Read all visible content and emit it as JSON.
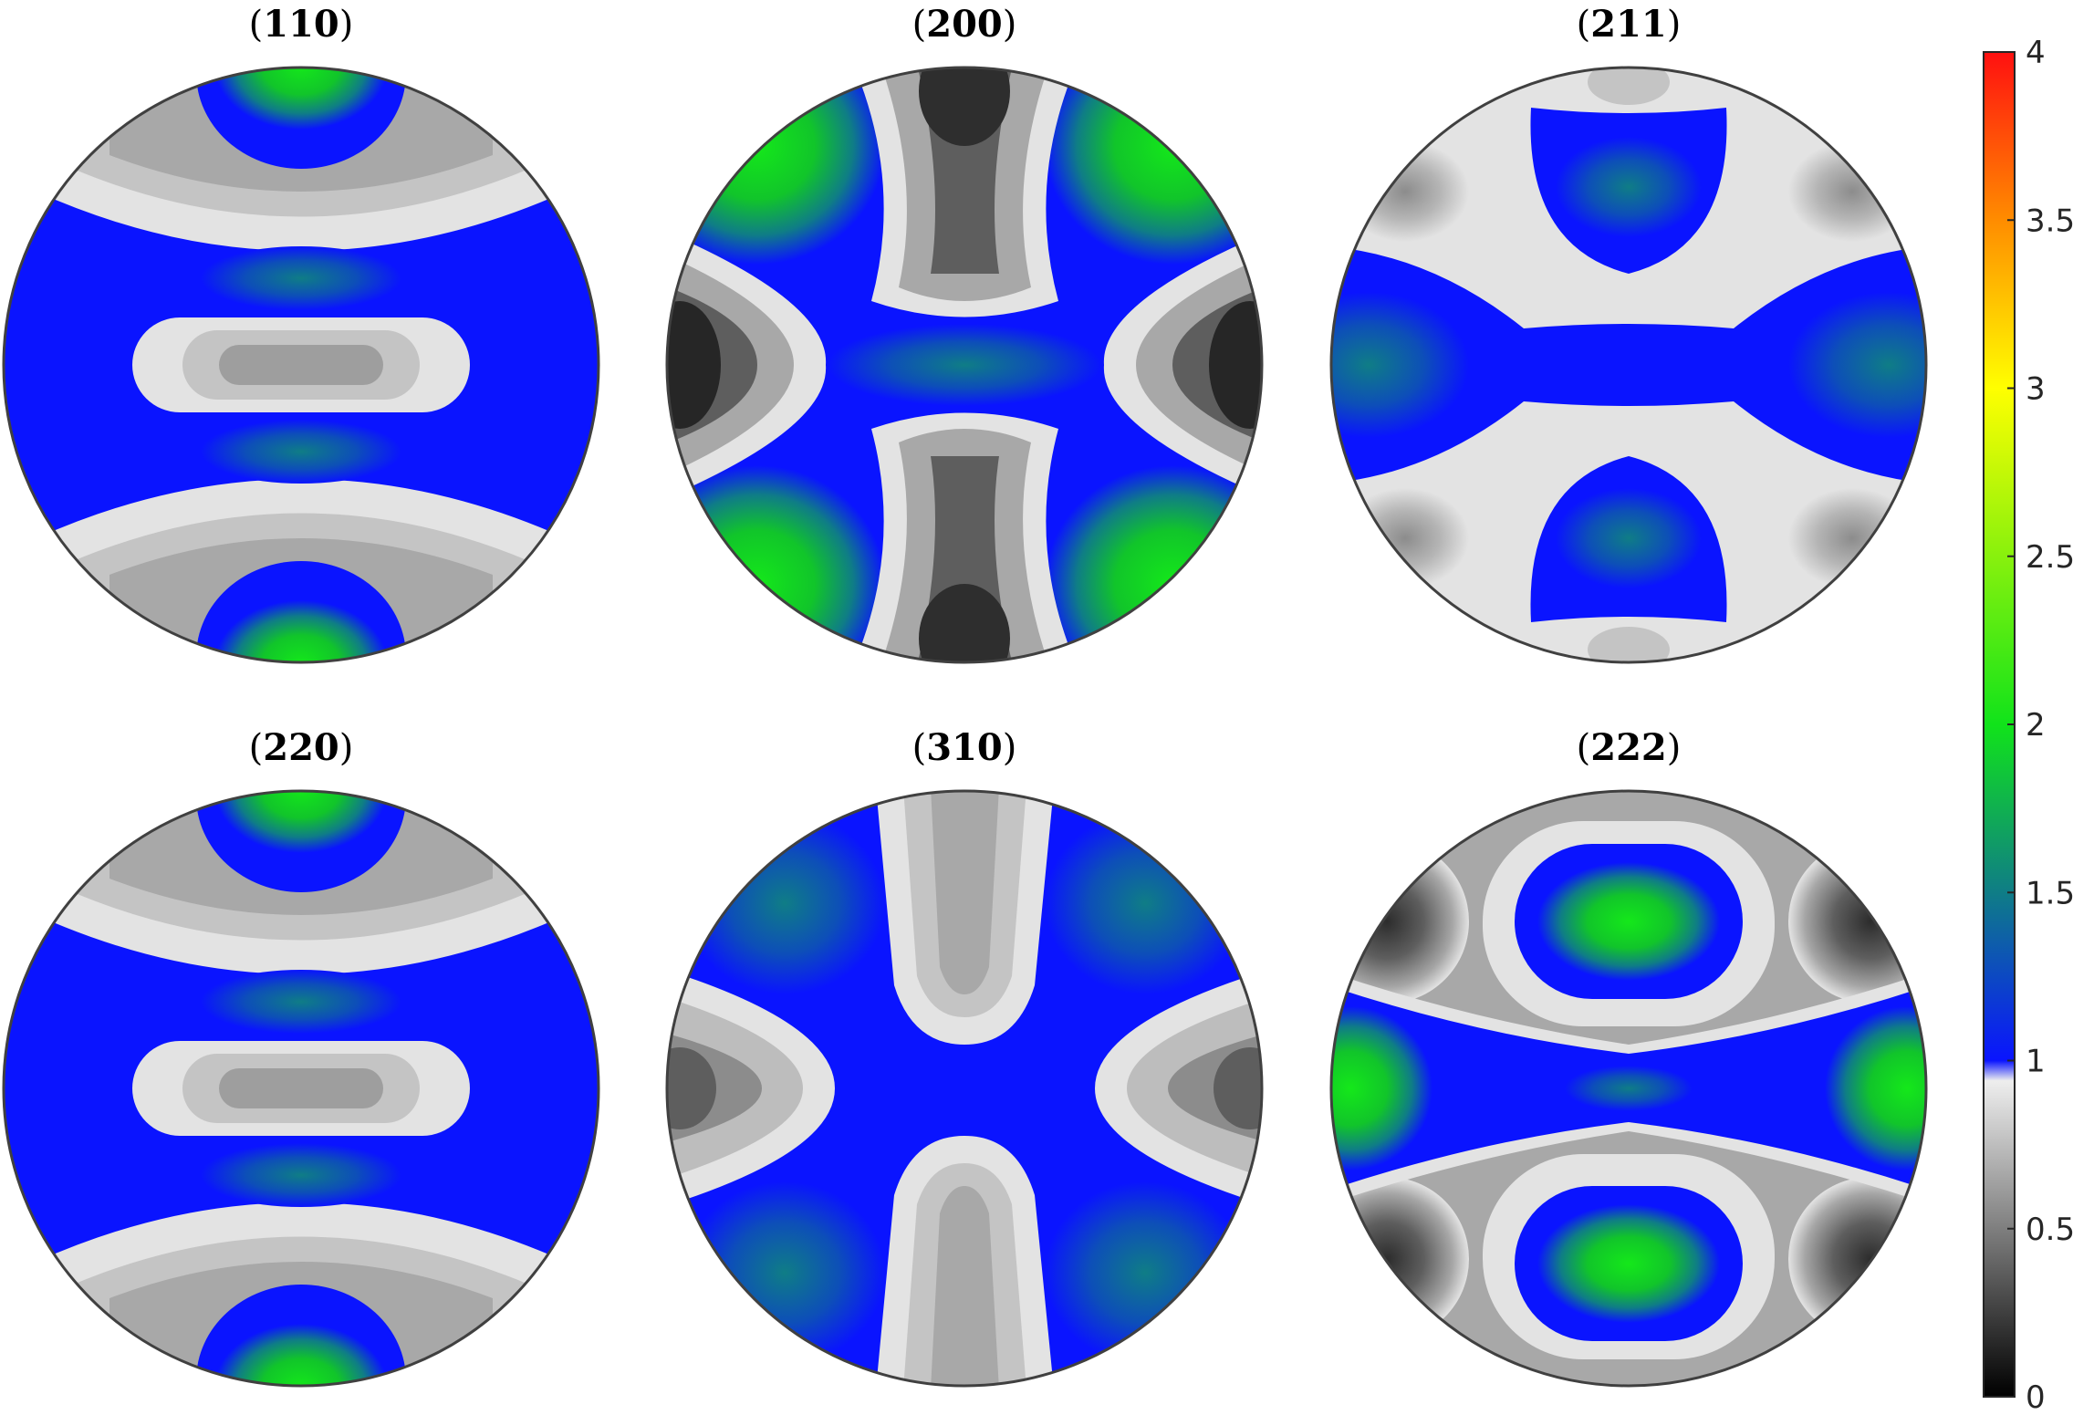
{
  "figure": {
    "panels": [
      {
        "label": "110",
        "base": "#0a14ff"
      },
      {
        "label": "200",
        "base": "#0a14ff"
      },
      {
        "label": "211",
        "base": "#0a14ff"
      },
      {
        "label": "220",
        "base": "#0a14ff"
      },
      {
        "label": "310",
        "base": "#0a14ff"
      },
      {
        "label": "222",
        "base": "#0a14ff"
      }
    ],
    "colorbar": {
      "ticks": [
        "0",
        "0.5",
        "1",
        "1.5",
        "2",
        "2.5",
        "3",
        "3.5",
        "4"
      ],
      "range": [
        0,
        4
      ]
    },
    "colors": {
      "blue": "#0a14ff",
      "green": "#11e31a",
      "teal": "#0f7d86",
      "grey_light": "#e3e3e3",
      "grey_mid": "#a8a8a8",
      "grey_dark": "#3a3a3a",
      "outline": "#404040"
    }
  }
}
